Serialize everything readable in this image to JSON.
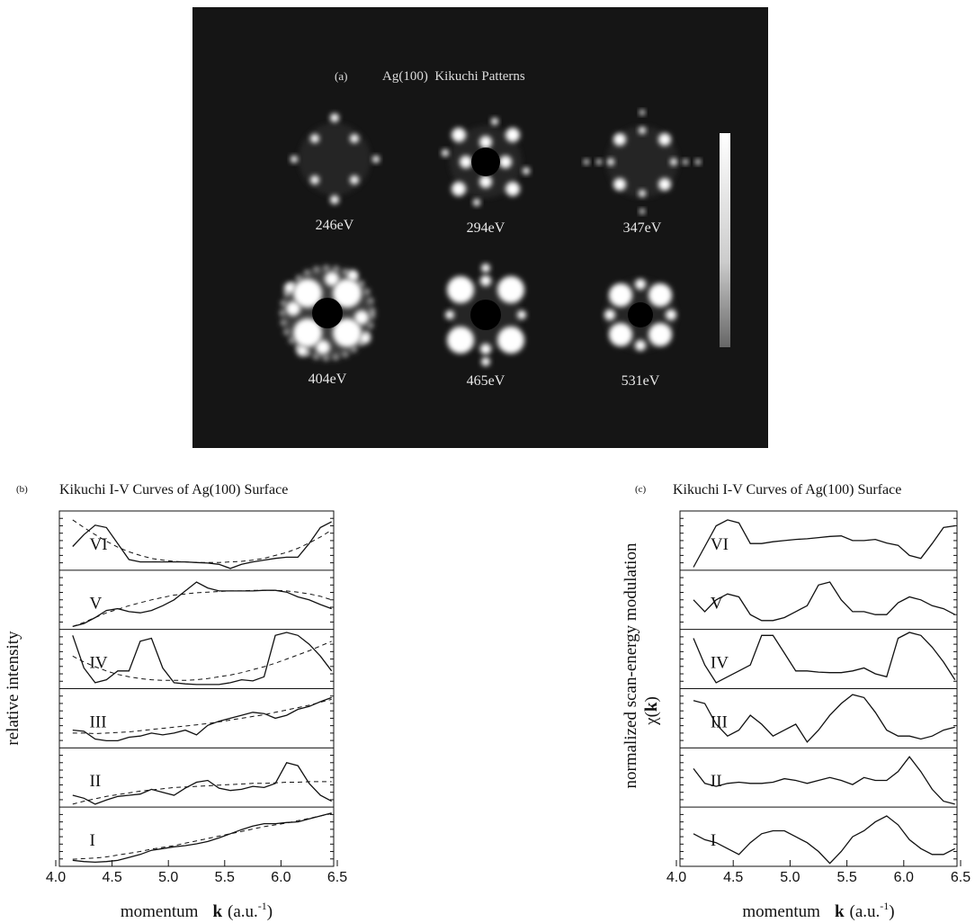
{
  "panel_a": {
    "label": "(a)",
    "title": "Ag(100)  Kikuchi Patterns",
    "patterns": [
      {
        "label": "246eV"
      },
      {
        "label": "294eV"
      },
      {
        "label": "347eV"
      },
      {
        "label": "404eV"
      },
      {
        "label": "465eV"
      },
      {
        "label": "531eV"
      }
    ]
  },
  "chart_data": [
    {
      "type": "line",
      "label": "(b)",
      "title": "Kikuchi I-V Curves of Ag(100) Surface",
      "y_label": "relative intensity",
      "x_label": [
        "momentum",
        "k",
        "(a.u.",
        "-1",
        ")"
      ],
      "xlim": [
        4.0,
        6.5
      ],
      "ylim": [
        0,
        1
      ],
      "xticks": [
        {
          "value": 4.0,
          "label": "4.0"
        },
        4.5,
        {
          "value": 5.0,
          "label": "5.0"
        },
        5.5,
        {
          "value": 6.0,
          "label": "6.0"
        },
        6.5
      ],
      "x": [
        4.15,
        4.25,
        4.35,
        4.45,
        4.55,
        4.65,
        4.75,
        4.85,
        4.95,
        5.05,
        5.15,
        5.25,
        5.35,
        5.45,
        5.55,
        5.65,
        5.75,
        5.85,
        5.95,
        6.05,
        6.15,
        6.25,
        6.35,
        6.45
      ],
      "series": [
        {
          "name": "VI",
          "color": "#111111",
          "values": [
            0.4,
            0.6,
            0.76,
            0.72,
            0.45,
            0.18,
            0.14,
            0.14,
            0.14,
            0.14,
            0.14,
            0.13,
            0.12,
            0.1,
            0.03,
            0.1,
            0.14,
            0.17,
            0.2,
            0.22,
            0.22,
            0.45,
            0.72,
            0.82
          ],
          "fit": [
            0.85,
            0.72,
            0.6,
            0.49,
            0.39,
            0.31,
            0.25,
            0.2,
            0.17,
            0.15,
            0.14,
            0.13,
            0.13,
            0.13,
            0.14,
            0.15,
            0.17,
            0.2,
            0.25,
            0.3,
            0.37,
            0.46,
            0.56,
            0.68
          ]
        },
        {
          "name": "V",
          "color": "#111111",
          "values": [
            0.05,
            0.1,
            0.2,
            0.32,
            0.35,
            0.3,
            0.28,
            0.32,
            0.4,
            0.5,
            0.65,
            0.8,
            0.7,
            0.65,
            0.65,
            0.65,
            0.65,
            0.66,
            0.66,
            0.63,
            0.55,
            0.5,
            0.42,
            0.35
          ],
          "fit": [
            0.05,
            0.12,
            0.2,
            0.28,
            0.34,
            0.4,
            0.45,
            0.5,
            0.54,
            0.58,
            0.6,
            0.62,
            0.63,
            0.64,
            0.65,
            0.65,
            0.66,
            0.66,
            0.66,
            0.65,
            0.63,
            0.6,
            0.56,
            0.5
          ]
        },
        {
          "name": "IV",
          "color": "#111111",
          "values": [
            0.9,
            0.35,
            0.1,
            0.15,
            0.3,
            0.3,
            0.8,
            0.85,
            0.35,
            0.1,
            0.08,
            0.07,
            0.07,
            0.07,
            0.1,
            0.15,
            0.13,
            0.2,
            0.9,
            0.95,
            0.9,
            0.75,
            0.55,
            0.3
          ],
          "fit": [
            0.55,
            0.45,
            0.37,
            0.3,
            0.24,
            0.2,
            0.17,
            0.15,
            0.14,
            0.14,
            0.14,
            0.15,
            0.17,
            0.2,
            0.23,
            0.27,
            0.32,
            0.37,
            0.43,
            0.5,
            0.57,
            0.64,
            0.72,
            0.8
          ]
        },
        {
          "name": "III",
          "color": "#111111",
          "values": [
            0.3,
            0.28,
            0.15,
            0.12,
            0.12,
            0.18,
            0.2,
            0.25,
            0.22,
            0.25,
            0.3,
            0.22,
            0.38,
            0.45,
            0.5,
            0.55,
            0.6,
            0.58,
            0.5,
            0.55,
            0.65,
            0.7,
            0.78,
            0.85
          ],
          "fit": [
            0.25,
            0.25,
            0.24,
            0.25,
            0.26,
            0.27,
            0.29,
            0.31,
            0.33,
            0.35,
            0.37,
            0.39,
            0.41,
            0.44,
            0.47,
            0.5,
            0.53,
            0.56,
            0.6,
            0.64,
            0.68,
            0.72,
            0.77,
            0.82
          ]
        },
        {
          "name": "II",
          "color": "#111111",
          "values": [
            0.2,
            0.15,
            0.05,
            0.12,
            0.18,
            0.2,
            0.22,
            0.3,
            0.25,
            0.2,
            0.32,
            0.42,
            0.45,
            0.32,
            0.28,
            0.3,
            0.35,
            0.33,
            0.4,
            0.75,
            0.7,
            0.4,
            0.2,
            0.1
          ],
          "fit": [
            0.05,
            0.1,
            0.14,
            0.18,
            0.21,
            0.24,
            0.27,
            0.29,
            0.31,
            0.33,
            0.34,
            0.35,
            0.36,
            0.37,
            0.38,
            0.39,
            0.4,
            0.4,
            0.41,
            0.42,
            0.42,
            0.43,
            0.43,
            0.43
          ]
        },
        {
          "name": "I",
          "color": "#111111",
          "values": [
            0.1,
            0.08,
            0.07,
            0.08,
            0.1,
            0.15,
            0.2,
            0.27,
            0.3,
            0.33,
            0.35,
            0.38,
            0.42,
            0.48,
            0.55,
            0.62,
            0.68,
            0.72,
            0.72,
            0.74,
            0.75,
            0.8,
            0.85,
            0.9
          ],
          "fit": [
            0.12,
            0.13,
            0.14,
            0.16,
            0.19,
            0.22,
            0.25,
            0.29,
            0.32,
            0.35,
            0.39,
            0.43,
            0.47,
            0.51,
            0.55,
            0.59,
            0.63,
            0.67,
            0.7,
            0.73,
            0.77,
            0.81,
            0.85,
            0.89
          ]
        }
      ]
    },
    {
      "type": "line",
      "label": "(c)",
      "title": "Kikuchi I-V Curves of Ag(100) Surface",
      "y_label": "normalized scan-energy modulation",
      "y_label2": [
        "χ(",
        "k",
        ")"
      ],
      "x_label": [
        "momentum",
        "k",
        "(a.u.",
        "-1",
        ")"
      ],
      "xlim": [
        4.0,
        6.5
      ],
      "ylim": [
        0,
        1
      ],
      "xticks": [
        {
          "value": 4.0,
          "label": "4.0"
        },
        4.5,
        {
          "value": 5.0,
          "label": "5.0"
        },
        5.5,
        {
          "value": 6.0,
          "label": "6.0"
        },
        6.5
      ],
      "x": [
        4.15,
        4.25,
        4.35,
        4.45,
        4.55,
        4.65,
        4.75,
        4.85,
        4.95,
        5.05,
        5.15,
        5.25,
        5.35,
        5.45,
        5.55,
        5.65,
        5.75,
        5.85,
        5.95,
        6.05,
        6.15,
        6.25,
        6.35,
        6.45
      ],
      "series": [
        {
          "name": "VI",
          "color": "#111111",
          "values": [
            0.05,
            0.4,
            0.75,
            0.85,
            0.8,
            0.45,
            0.45,
            0.48,
            0.5,
            0.52,
            0.53,
            0.55,
            0.57,
            0.58,
            0.5,
            0.5,
            0.52,
            0.46,
            0.42,
            0.25,
            0.2,
            0.45,
            0.72,
            0.75
          ]
        },
        {
          "name": "V",
          "color": "#111111",
          "values": [
            0.5,
            0.3,
            0.5,
            0.6,
            0.55,
            0.25,
            0.15,
            0.15,
            0.2,
            0.3,
            0.4,
            0.75,
            0.8,
            0.5,
            0.3,
            0.3,
            0.25,
            0.25,
            0.45,
            0.55,
            0.5,
            0.4,
            0.35,
            0.25
          ]
        },
        {
          "name": "IV",
          "color": "#111111",
          "values": [
            0.85,
            0.4,
            0.1,
            0.2,
            0.3,
            0.4,
            0.9,
            0.9,
            0.6,
            0.3,
            0.3,
            0.28,
            0.27,
            0.27,
            0.3,
            0.35,
            0.25,
            0.2,
            0.85,
            0.95,
            0.9,
            0.7,
            0.45,
            0.15
          ]
        },
        {
          "name": "III",
          "color": "#111111",
          "values": [
            0.8,
            0.75,
            0.4,
            0.2,
            0.3,
            0.55,
            0.4,
            0.2,
            0.3,
            0.4,
            0.1,
            0.3,
            0.55,
            0.75,
            0.9,
            0.85,
            0.6,
            0.3,
            0.2,
            0.2,
            0.15,
            0.2,
            0.3,
            0.35
          ]
        },
        {
          "name": "II",
          "color": "#111111",
          "values": [
            0.65,
            0.4,
            0.35,
            0.4,
            0.42,
            0.4,
            0.4,
            0.42,
            0.48,
            0.45,
            0.4,
            0.45,
            0.5,
            0.45,
            0.38,
            0.5,
            0.45,
            0.45,
            0.6,
            0.85,
            0.6,
            0.3,
            0.1,
            0.05
          ]
        },
        {
          "name": "I",
          "color": "#111111",
          "values": [
            0.55,
            0.45,
            0.4,
            0.3,
            0.2,
            0.4,
            0.55,
            0.6,
            0.6,
            0.5,
            0.4,
            0.25,
            0.05,
            0.25,
            0.5,
            0.6,
            0.75,
            0.85,
            0.7,
            0.45,
            0.3,
            0.2,
            0.2,
            0.3
          ]
        }
      ]
    }
  ]
}
